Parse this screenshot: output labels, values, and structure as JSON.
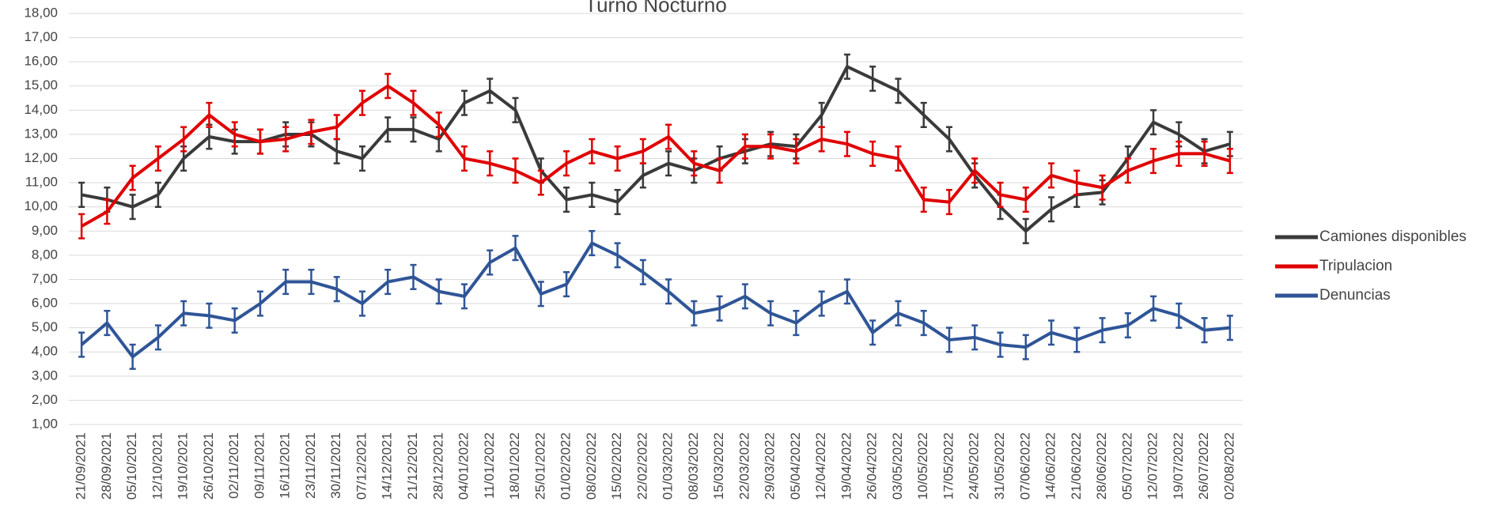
{
  "chart_data": {
    "type": "line",
    "title": "Turno Nocturno",
    "categories": [
      "21/09/2021",
      "28/09/2021",
      "05/10/2021",
      "12/10/2021",
      "19/10/2021",
      "26/10/2021",
      "02/11/2021",
      "09/11/2021",
      "16/11/2021",
      "23/11/2021",
      "30/11/2021",
      "07/12/2021",
      "14/12/2021",
      "21/12/2021",
      "28/12/2021",
      "04/01/2022",
      "11/01/2022",
      "18/01/2022",
      "25/01/2022",
      "01/02/2022",
      "08/02/2022",
      "15/02/2022",
      "22/02/2022",
      "01/03/2022",
      "08/03/2022",
      "15/03/2022",
      "22/03/2022",
      "29/03/2022",
      "05/04/2022",
      "12/04/2022",
      "19/04/2022",
      "26/04/2022",
      "03/05/2022",
      "10/05/2022",
      "17/05/2022",
      "24/05/2022",
      "31/05/2022",
      "07/06/2022",
      "14/06/2022",
      "21/06/2022",
      "28/06/2022",
      "05/07/2022",
      "12/07/2022",
      "19/07/2022",
      "26/07/2022",
      "02/08/2022"
    ],
    "series": [
      {
        "name": "Camiones disponibles",
        "color": "#3a3a3a",
        "error": 0.5,
        "values": [
          10.5,
          10.3,
          10.0,
          10.5,
          12.0,
          12.9,
          12.7,
          12.7,
          13.0,
          13.0,
          12.3,
          12.0,
          13.2,
          13.2,
          12.8,
          14.3,
          14.8,
          14.0,
          11.5,
          10.3,
          10.5,
          10.2,
          11.3,
          11.8,
          11.5,
          12.0,
          12.3,
          12.6,
          12.5,
          13.8,
          15.8,
          15.3,
          14.8,
          13.8,
          12.8,
          11.3,
          10.0,
          9.0,
          9.9,
          10.5,
          10.6,
          12.0,
          13.5,
          13.0,
          12.3,
          12.6
        ]
      },
      {
        "name": "Tripulacion",
        "color": "#e00000",
        "error": 0.5,
        "values": [
          9.2,
          9.8,
          11.2,
          12.0,
          12.8,
          13.8,
          13.0,
          12.7,
          12.8,
          13.1,
          13.3,
          14.3,
          15.0,
          14.3,
          13.4,
          12.0,
          11.8,
          11.5,
          11.0,
          11.8,
          12.3,
          12.0,
          12.3,
          12.9,
          11.8,
          11.5,
          12.5,
          12.5,
          12.3,
          12.8,
          12.6,
          12.2,
          12.0,
          10.3,
          10.2,
          11.5,
          10.5,
          10.3,
          11.3,
          11.0,
          10.8,
          11.5,
          11.9,
          12.2,
          12.2,
          11.9
        ]
      },
      {
        "name": "Denuncias",
        "color": "#2f5597",
        "error": 0.5,
        "values": [
          4.3,
          5.2,
          3.8,
          4.6,
          5.6,
          5.5,
          5.3,
          6.0,
          6.9,
          6.9,
          6.6,
          6.0,
          6.9,
          7.1,
          6.5,
          6.3,
          7.7,
          8.3,
          6.4,
          6.8,
          8.5,
          8.0,
          7.3,
          6.5,
          5.6,
          5.8,
          6.3,
          5.6,
          5.2,
          6.0,
          6.5,
          4.8,
          5.6,
          5.2,
          4.5,
          4.6,
          4.3,
          4.2,
          4.8,
          4.5,
          4.9,
          5.1,
          5.8,
          5.5,
          4.9,
          5.0
        ]
      }
    ],
    "ylim": [
      1,
      18
    ],
    "yticks": [
      {
        "value": 1,
        "label": "1,00"
      },
      {
        "value": 2,
        "label": "2,00"
      },
      {
        "value": 3,
        "label": "3,00"
      },
      {
        "value": 4,
        "label": "4,00"
      },
      {
        "value": 5,
        "label": "5,00"
      },
      {
        "value": 6,
        "label": "6,00"
      },
      {
        "value": 7,
        "label": "7,00"
      },
      {
        "value": 8,
        "label": "8,00"
      },
      {
        "value": 9,
        "label": "9,00"
      },
      {
        "value": 10,
        "label": "10,00"
      },
      {
        "value": 11,
        "label": "11,00"
      },
      {
        "value": 12,
        "label": "12,00"
      },
      {
        "value": 13,
        "label": "13,00"
      },
      {
        "value": 14,
        "label": "14,00"
      },
      {
        "value": 15,
        "label": "15,00"
      },
      {
        "value": 16,
        "label": "16,00"
      },
      {
        "value": 17,
        "label": "17,00"
      },
      {
        "value": 18,
        "label": "18,00"
      }
    ],
    "grid": true,
    "legend": "right"
  }
}
